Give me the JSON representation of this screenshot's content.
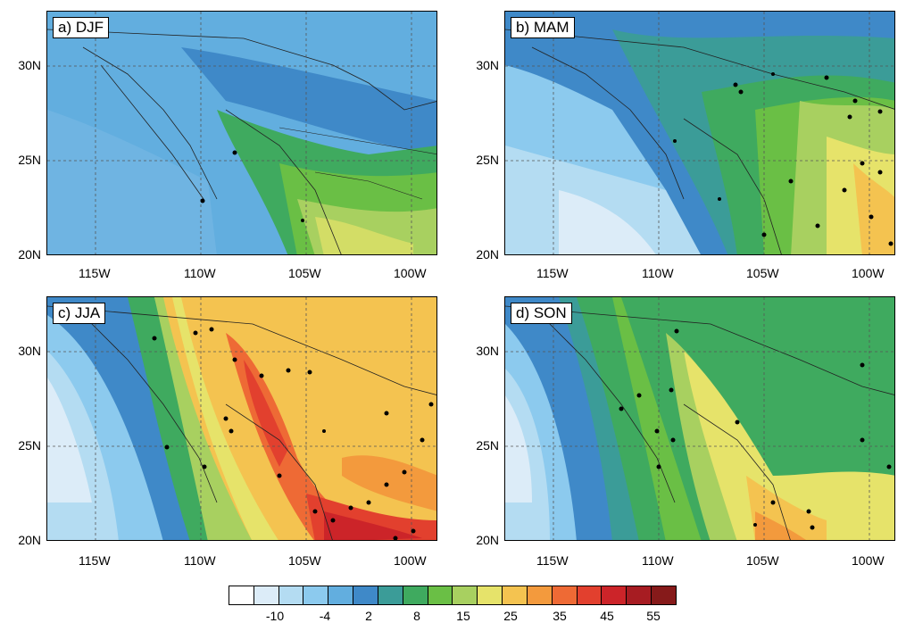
{
  "panels": [
    {
      "label": "a) DJF",
      "theme": "djf"
    },
    {
      "label": "b) MAM",
      "theme": "mam"
    },
    {
      "label": "c) JJA",
      "theme": "jja"
    },
    {
      "label": "d) SON",
      "theme": "son"
    }
  ],
  "lat_labels": [
    "30N",
    "25N",
    "20N"
  ],
  "lon_labels": [
    "115W",
    "110W",
    "105W",
    "100W"
  ],
  "colorbar": {
    "labels": [
      "-10",
      "-4",
      "2",
      "8",
      "15",
      "25",
      "35",
      "45",
      "55"
    ],
    "colors": [
      "#ffffff",
      "#dcecf8",
      "#b4dcf2",
      "#8ccaee",
      "#62aedf",
      "#3f89c8",
      "#3b9c98",
      "#3faa5f",
      "#6abf45",
      "#a8d060",
      "#e6e36a",
      "#f4c350",
      "#f39a3d",
      "#ee6a35",
      "#e2402e",
      "#cc2429",
      "#a71c22",
      "#861a1a"
    ]
  }
}
